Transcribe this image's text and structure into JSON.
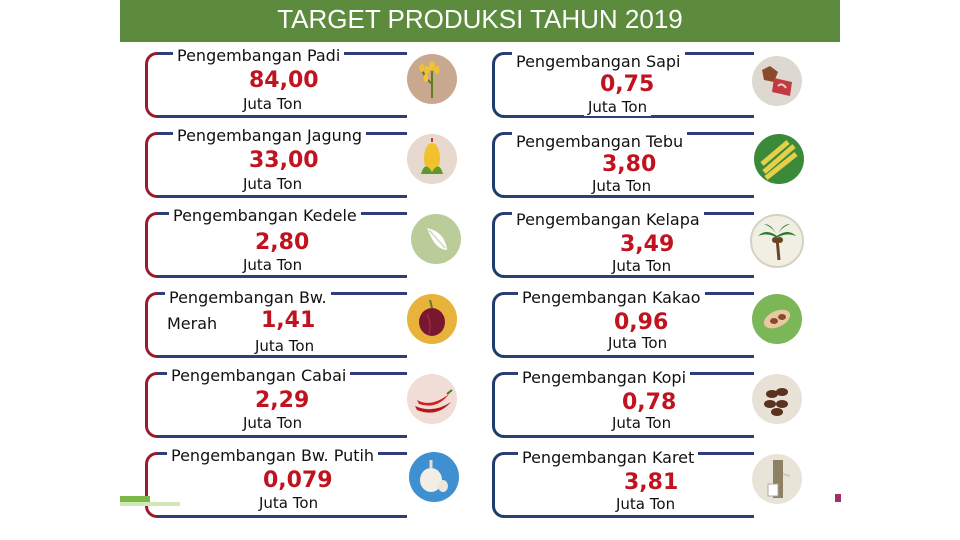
{
  "title": "TARGET PRODUKSI TAHUN 2019",
  "colors": {
    "header": "#5d8b3e",
    "value": "#c1121f",
    "bracket_red": "#9a1c2c",
    "bracket_blue": "#1e3d6e"
  },
  "left": [
    {
      "label": "Pengembangan Padi",
      "value": "84,00",
      "unit": "Juta Ton",
      "icon": "rice-icon"
    },
    {
      "label": "Pengembangan Jagung",
      "value": "33,00",
      "unit": "Juta Ton",
      "icon": "corn-icon"
    },
    {
      "label": "Pengembangan Kedele",
      "value": "2,80",
      "unit": "Juta Ton",
      "icon": "soybean-icon"
    },
    {
      "label": "Pengembangan Bw.",
      "label2": "Merah",
      "value": "1,41",
      "unit": "Juta Ton",
      "icon": "shallot-icon"
    },
    {
      "label": "Pengembangan Cabai",
      "value": "2,29",
      "unit": "Juta Ton",
      "icon": "chili-icon"
    },
    {
      "label": "Pengembangan Bw. Putih",
      "value": "0,079",
      "unit": "Juta Ton",
      "icon": "garlic-icon"
    }
  ],
  "right": [
    {
      "label": "Pengembangan Sapi",
      "value": "0,75",
      "unit": "Juta Ton",
      "icon": "beef-icon"
    },
    {
      "label": "Pengembangan Tebu",
      "value": "3,80",
      "unit": "Juta Ton",
      "icon": "sugarcane-icon"
    },
    {
      "label": "Pengembangan Kelapa",
      "value": "3,49",
      "unit": "Juta Ton",
      "icon": "coconut-icon"
    },
    {
      "label": "Pengembangan Kakao",
      "value": "0,96",
      "unit": "Juta Ton",
      "icon": "cocoa-icon"
    },
    {
      "label": "Pengembangan Kopi",
      "value": "0,78",
      "unit": "Juta Ton",
      "icon": "coffee-icon"
    },
    {
      "label": "Pengembangan Karet",
      "value": "3,81",
      "unit": "Juta Ton",
      "icon": "rubber-icon"
    }
  ]
}
